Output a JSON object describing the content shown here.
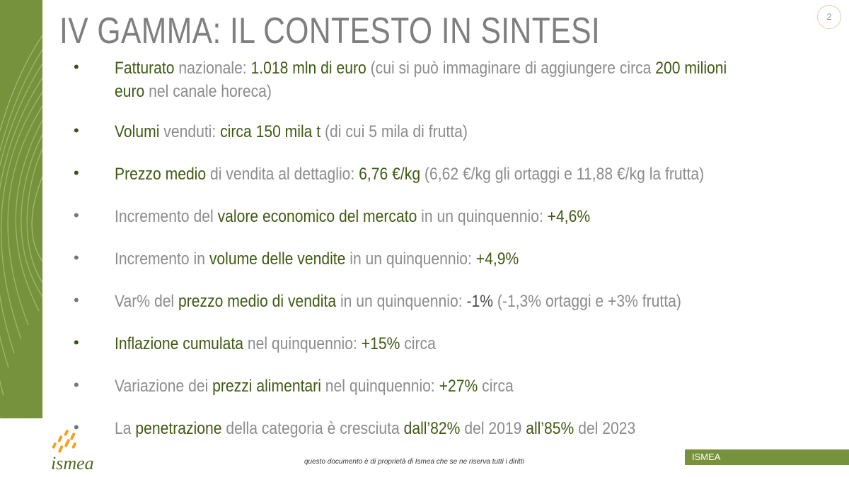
{
  "title": "IV GAMMA: IL CONTESTO IN SINTESI",
  "page_number": "2",
  "bullet_char": "•",
  "items": [
    {
      "parts": [
        {
          "t": "Fatturato",
          "s": "hl"
        },
        {
          "t": " nazionale: ",
          "s": "n"
        },
        {
          "t": "1.018 mln di euro",
          "s": "hl"
        },
        {
          "t": " (cui si può immaginare di aggiungere circa ",
          "s": "n"
        },
        {
          "t": "200 milioni euro",
          "s": "hl"
        },
        {
          "t": " nel canale horeca)",
          "s": "n"
        }
      ]
    },
    {
      "parts": [
        {
          "t": "Volumi",
          "s": "hl"
        },
        {
          "t": " venduti: ",
          "s": "n"
        },
        {
          "t": "circa 150 mila t",
          "s": "hl"
        },
        {
          "t": " (di cui 5 mila di frutta)",
          "s": "n"
        }
      ]
    },
    {
      "parts": [
        {
          "t": "Prezzo medio",
          "s": "hl"
        },
        {
          "t": " di vendita al dettaglio: ",
          "s": "n"
        },
        {
          "t": "6,76 €/kg",
          "s": "hl"
        },
        {
          "t": " (6,62 €/kg gli ortaggi e 11,88 €/kg la frutta)",
          "s": "n"
        }
      ]
    },
    {
      "parts": [
        {
          "t": "Incremento del ",
          "s": "n"
        },
        {
          "t": "valore economico del mercato",
          "s": "hl"
        },
        {
          "t": " in un quinquennio: ",
          "s": "n"
        },
        {
          "t": "+4,6%",
          "s": "hl"
        }
      ]
    },
    {
      "parts": [
        {
          "t": "Incremento in ",
          "s": "n"
        },
        {
          "t": "volume delle vendite",
          "s": "hl"
        },
        {
          "t": " in un quinquennio: ",
          "s": "n"
        },
        {
          "t": "+4,9%",
          "s": "hl"
        }
      ]
    },
    {
      "parts": [
        {
          "t": "Var% del ",
          "s": "n"
        },
        {
          "t": "prezzo medio di vendita",
          "s": "hl"
        },
        {
          "t": " in un quinquennio: ",
          "s": "n"
        },
        {
          "t": "-1%",
          "s": "dk"
        },
        {
          "t": " (-1,3% ortaggi e +3% frutta)",
          "s": "n"
        }
      ]
    },
    {
      "parts": [
        {
          "t": "Inflazione cumulata",
          "s": "hl"
        },
        {
          "t": " nel quinquennio: ",
          "s": "n"
        },
        {
          "t": "+15%",
          "s": "hl"
        },
        {
          "t": " circa",
          "s": "n"
        }
      ]
    },
    {
      "parts": [
        {
          "t": "Variazione dei ",
          "s": "n"
        },
        {
          "t": "prezzi alimentari",
          "s": "hl"
        },
        {
          "t": " nel quinquennio: ",
          "s": "n"
        },
        {
          "t": "+27%",
          "s": "hl"
        },
        {
          "t": " circa",
          "s": "n"
        }
      ]
    },
    {
      "parts": [
        {
          "t": "La ",
          "s": "n"
        },
        {
          "t": "penetrazione",
          "s": "hl"
        },
        {
          "t": " della categoria è cresciuta ",
          "s": "n"
        },
        {
          "t": "dall’82%",
          "s": "hl"
        },
        {
          "t": " del 2019 ",
          "s": "n"
        },
        {
          "t": "all’85%",
          "s": "hl"
        },
        {
          "t": " del 2023",
          "s": "n"
        }
      ]
    }
  ],
  "bullet_styles": [
    "dark",
    "dark",
    "dark",
    "light",
    "light",
    "light",
    "dark",
    "light",
    "light"
  ],
  "logo_text": "ismea",
  "footer_note": "questo documento è di proprietà di Ismea che se ne riserva tutti i diritti",
  "footer_brand": "ISMEA",
  "colors": {
    "accent_green": "#76923c",
    "highlight_text": "#3f5a12",
    "body_text": "#8c8c8c",
    "logo_orange": "#f4a21c",
    "logo_green": "#4d6b1f"
  }
}
